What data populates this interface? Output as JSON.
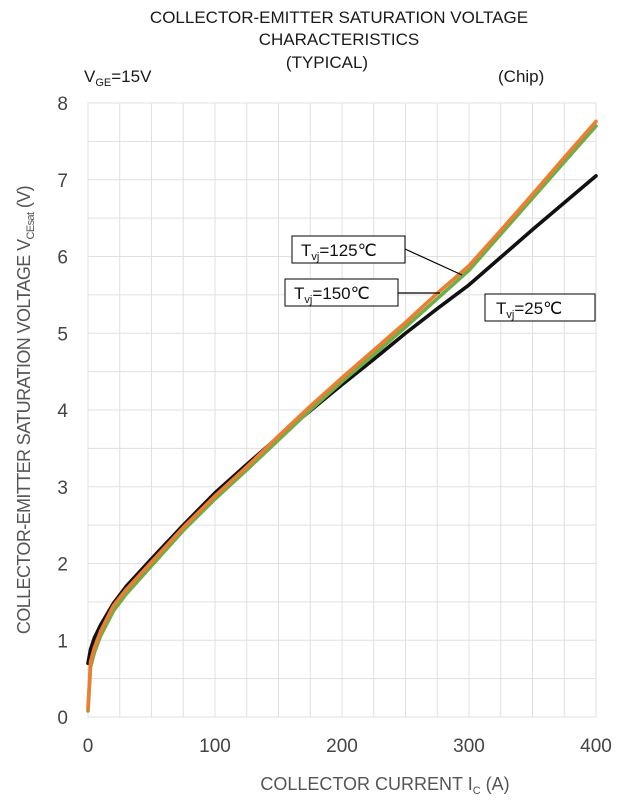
{
  "chart_data": {
    "type": "line",
    "title_lines": [
      "COLLECTOR-EMITTER SATURATION VOLTAGE",
      "CHARACTERISTICS",
      "(TYPICAL)"
    ],
    "condition": {
      "main": "V",
      "sub": "GE",
      "rest": "=15V"
    },
    "scope_note": "(Chip)",
    "xlabel": {
      "main": "COLLECTOR CURRENT  I",
      "sub": "C",
      "rest": " (A)"
    },
    "ylabel": {
      "main": "COLLECTOR-EMITTER SATURATION VOLTAGE V",
      "sub": "CEsat",
      "rest": " (V)"
    },
    "xlim": [
      0,
      400
    ],
    "ylim": [
      0,
      8
    ],
    "xticks": [
      "0",
      "100",
      "200",
      "300",
      "400"
    ],
    "yticks": [
      "0",
      "1",
      "2",
      "3",
      "4",
      "5",
      "6",
      "7",
      "8"
    ],
    "grid": true,
    "series": [
      {
        "label": {
          "main": "T",
          "sub": "vj",
          "rest": "=25℃"
        },
        "color": "#111111",
        "x": [
          0,
          2,
          5,
          10,
          20,
          30,
          50,
          75,
          100,
          125,
          150,
          175,
          200,
          225,
          250,
          275,
          300,
          325,
          350,
          375,
          400
        ],
        "y": [
          0.7,
          0.88,
          1.03,
          1.2,
          1.48,
          1.7,
          2.06,
          2.5,
          2.92,
          3.29,
          3.65,
          3.99,
          4.33,
          4.66,
          5.0,
          5.32,
          5.63,
          5.99,
          6.35,
          6.7,
          7.05
        ]
      },
      {
        "label": {
          "main": "T",
          "sub": "vj",
          "rest": "=125℃"
        },
        "color": "#ed7d31",
        "x": [
          0,
          2,
          5,
          10,
          20,
          30,
          50,
          75,
          100,
          125,
          150,
          175,
          200,
          225,
          250,
          275,
          300,
          325,
          350,
          375,
          400
        ],
        "y": [
          0.1,
          0.72,
          0.9,
          1.12,
          1.45,
          1.66,
          2.02,
          2.47,
          2.88,
          3.26,
          3.66,
          4.05,
          4.42,
          4.78,
          5.14,
          5.52,
          5.88,
          6.34,
          6.81,
          7.29,
          7.76
        ]
      },
      {
        "label": {
          "main": "T",
          "sub": "vj",
          "rest": "=150℃"
        },
        "color": "#70ad47",
        "x": [
          0,
          2,
          5,
          10,
          20,
          30,
          50,
          75,
          100,
          125,
          150,
          175,
          200,
          225,
          250,
          275,
          300,
          325,
          350,
          375,
          400
        ],
        "y": [
          0.08,
          0.65,
          0.84,
          1.06,
          1.38,
          1.6,
          1.97,
          2.43,
          2.84,
          3.22,
          3.61,
          4.0,
          4.37,
          4.72,
          5.08,
          5.45,
          5.82,
          6.29,
          6.76,
          7.23,
          7.7
        ]
      }
    ]
  }
}
